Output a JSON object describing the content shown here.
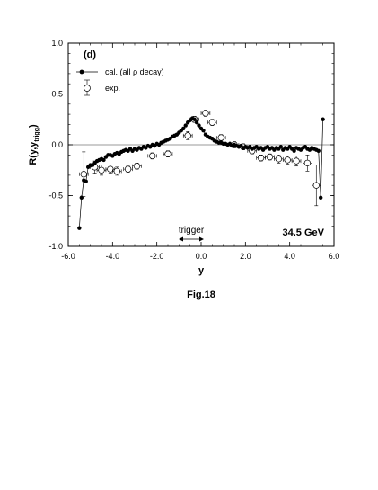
{
  "chart_data": {
    "type": "scatter",
    "panel_label": "(d)",
    "xlabel": "y",
    "ylabel": "R(y,y",
    "ylabel_sub": "trigg",
    "ylabel_close": ")",
    "xlim": [
      -6.0,
      6.0
    ],
    "ylim": [
      -1.0,
      1.0
    ],
    "x_ticks": [
      -6.0,
      -4.0,
      -2.0,
      0.0,
      2.0,
      4.0,
      6.0
    ],
    "x_tick_labels": [
      "-6.0",
      "-4.0",
      "-2.0",
      "0.0",
      "2.0",
      "4.0",
      "6.0"
    ],
    "y_ticks": [
      -1.0,
      -0.5,
      0.0,
      0.5,
      1.0
    ],
    "y_tick_labels": [
      "-1.0",
      "-0.5",
      "0.0",
      "0.5",
      "1.0"
    ],
    "grid": false,
    "legend_position": "top-left",
    "annotation_energy": "34.5 GeV",
    "annotation_trigger": "trigger",
    "caption": "Fig.18",
    "series": [
      {
        "name": "cal. (all ρ decay)",
        "style": "filled-circle-line",
        "x": [
          -5.5,
          -5.4,
          -5.3,
          -5.2,
          -5.1,
          -5.0,
          -4.9,
          -4.8,
          -4.7,
          -4.6,
          -4.5,
          -4.4,
          -4.3,
          -4.2,
          -4.1,
          -4.0,
          -3.9,
          -3.8,
          -3.7,
          -3.6,
          -3.5,
          -3.4,
          -3.3,
          -3.2,
          -3.1,
          -3.0,
          -2.9,
          -2.8,
          -2.7,
          -2.6,
          -2.5,
          -2.4,
          -2.3,
          -2.2,
          -2.1,
          -2.0,
          -1.9,
          -1.8,
          -1.7,
          -1.6,
          -1.5,
          -1.4,
          -1.3,
          -1.2,
          -1.1,
          -1.0,
          -0.9,
          -0.8,
          -0.7,
          -0.6,
          -0.5,
          -0.4,
          -0.3,
          -0.2,
          -0.1,
          0.0,
          0.1,
          0.2,
          0.3,
          0.4,
          0.5,
          0.6,
          0.7,
          0.8,
          0.9,
          1.0,
          1.1,
          1.2,
          1.3,
          1.4,
          1.5,
          1.6,
          1.7,
          1.8,
          1.9,
          2.0,
          2.1,
          2.2,
          2.3,
          2.4,
          2.5,
          2.6,
          2.7,
          2.8,
          2.9,
          3.0,
          3.1,
          3.2,
          3.3,
          3.4,
          3.5,
          3.6,
          3.7,
          3.8,
          3.9,
          4.0,
          4.1,
          4.2,
          4.3,
          4.4,
          4.5,
          4.6,
          4.7,
          4.8,
          4.9,
          5.0,
          5.1,
          5.2,
          5.3,
          5.4,
          5.5
        ],
        "y": [
          -0.82,
          -0.52,
          -0.35,
          -0.36,
          -0.22,
          -0.2,
          -0.2,
          -0.18,
          -0.16,
          -0.15,
          -0.14,
          -0.15,
          -0.12,
          -0.1,
          -0.1,
          -0.11,
          -0.09,
          -0.08,
          -0.09,
          -0.07,
          -0.06,
          -0.05,
          -0.06,
          -0.04,
          -0.06,
          -0.04,
          -0.05,
          -0.03,
          -0.04,
          -0.02,
          -0.03,
          -0.01,
          -0.02,
          0.0,
          -0.01,
          0.01,
          0.0,
          0.02,
          0.03,
          0.04,
          0.05,
          0.06,
          0.08,
          0.09,
          0.1,
          0.12,
          0.14,
          0.16,
          0.19,
          0.22,
          0.24,
          0.26,
          0.25,
          0.22,
          0.19,
          0.16,
          0.14,
          0.1,
          0.08,
          0.07,
          0.06,
          0.04,
          0.03,
          0.02,
          0.02,
          0.01,
          0.01,
          0.0,
          0.01,
          -0.01,
          0.0,
          -0.01,
          -0.02,
          -0.01,
          -0.03,
          -0.02,
          -0.03,
          -0.02,
          -0.04,
          -0.03,
          -0.02,
          -0.04,
          -0.03,
          -0.05,
          -0.03,
          -0.02,
          -0.04,
          -0.03,
          -0.05,
          -0.03,
          -0.04,
          -0.02,
          -0.05,
          -0.03,
          -0.04,
          -0.02,
          -0.04,
          -0.06,
          -0.03,
          -0.04,
          -0.05,
          -0.03,
          -0.02,
          -0.04,
          -0.05,
          -0.03,
          -0.04,
          -0.05,
          -0.06,
          -0.52,
          0.25
        ]
      },
      {
        "name": "exp.",
        "style": "open-circle-errorbar",
        "x": [
          -5.3,
          -4.8,
          -4.5,
          -4.1,
          -3.8,
          -3.3,
          -2.9,
          -2.2,
          -1.5,
          -0.6,
          -0.3,
          0.2,
          0.5,
          0.9,
          1.5,
          1.9,
          2.3,
          2.7,
          3.1,
          3.5,
          3.9,
          4.3,
          4.8,
          5.2
        ],
        "y": [
          -0.29,
          -0.22,
          -0.25,
          -0.24,
          -0.26,
          -0.24,
          -0.21,
          -0.11,
          -0.09,
          0.09,
          0.25,
          0.31,
          0.22,
          0.07,
          0.0,
          -0.02,
          -0.06,
          -0.13,
          -0.12,
          -0.14,
          -0.15,
          -0.16,
          -0.18,
          -0.4
        ],
        "xerr": [
          0.2,
          0.2,
          0.2,
          0.2,
          0.2,
          0.2,
          0.2,
          0.2,
          0.2,
          0.2,
          0.2,
          0.2,
          0.2,
          0.2,
          0.2,
          0.2,
          0.2,
          0.2,
          0.2,
          0.2,
          0.2,
          0.2,
          0.2,
          0.2
        ],
        "yerr": [
          0.22,
          0.06,
          0.05,
          0.04,
          0.04,
          0.03,
          0.03,
          0.03,
          0.03,
          0.04,
          0.03,
          0.03,
          0.03,
          0.03,
          0.03,
          0.03,
          0.03,
          0.03,
          0.03,
          0.04,
          0.04,
          0.05,
          0.08,
          0.2
        ]
      }
    ]
  }
}
